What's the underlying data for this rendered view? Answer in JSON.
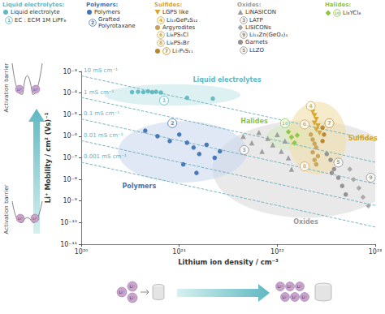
{
  "chart_data": {
    "type": "scatter",
    "xlabel": "Lithium ion density / cm⁻³",
    "ylabel": "Li⁺ Mobility / cm² (Vs)⁻¹",
    "log": true,
    "grid": false,
    "legend": "top",
    "xlim": [
      1e+20,
      1e+23
    ],
    "xticks": [
      {
        "value": 1e+20,
        "label": "10²⁰"
      },
      {
        "value": 1e+21,
        "label": "10²¹"
      },
      {
        "value": 1e+22,
        "label": "10²²"
      },
      {
        "value": 1e+23,
        "label": "10²³"
      }
    ],
    "ylim": [
      1e-11,
      0.001
    ],
    "yticks": [
      {
        "value": 0.001,
        "label": "10⁻³"
      },
      {
        "value": 0.0001,
        "label": "10⁻⁴"
      },
      {
        "value": 1e-05,
        "label": "10⁻⁵"
      },
      {
        "value": 1e-06,
        "label": "10⁻⁶"
      },
      {
        "value": 1e-07,
        "label": "10⁻⁷"
      },
      {
        "value": 1e-08,
        "label": "10⁻⁸"
      },
      {
        "value": 1e-09,
        "label": "10⁻⁹"
      },
      {
        "value": 1e-10,
        "label": "10⁻¹⁰"
      },
      {
        "value": 1e-11,
        "label": "10⁻¹¹"
      }
    ],
    "series": [
      {
        "name": "Liquid electrolyte",
        "color": "#5fb8c2",
        "marker": "circle",
        "values": [
          [
            3.3e+20,
            0.00011
          ],
          [
            3.8e+20,
            0.000115
          ],
          [
            4.3e+20,
            0.00011
          ],
          [
            4.8e+20,
            0.00012
          ],
          [
            5.3e+20,
            0.00011
          ],
          [
            5.8e+20,
            0.000115
          ],
          [
            6.5e+20,
            0.000105
          ],
          [
            1.2e+21,
            6e-05
          ],
          [
            2.2e+21,
            5.5e-05
          ]
        ]
      },
      {
        "name": "Polymers",
        "color": "#3f74b5",
        "marker": "circle",
        "values": [
          [
            4.5e+20,
            1.8e-06
          ],
          [
            6e+20,
            1e-06
          ],
          [
            8e+20,
            6e-07
          ],
          [
            1e+21,
            1.2e-06
          ],
          [
            1.2e+21,
            5e-07
          ],
          [
            1.4e+21,
            3e-07
          ],
          [
            1.6e+21,
            1.5e-07
          ],
          [
            1.9e+21,
            4e-07
          ],
          [
            2.3e+21,
            1e-07
          ],
          [
            1.1e+21,
            5e-08
          ],
          [
            1.5e+21,
            2e-08
          ],
          [
            2.6e+21,
            2e-07
          ]
        ]
      },
      {
        "name": "LGPS like",
        "color": "#d6a52c",
        "marker": "triangle-down",
        "values": [
          [
            2.3e+22,
            1.3e-05
          ],
          [
            2.4e+22,
            9e-06
          ],
          [
            2.5e+22,
            6e-06
          ],
          [
            2.4e+22,
            4e-06
          ],
          [
            2.6e+22,
            3e-06
          ],
          [
            2.5e+22,
            2e-06
          ],
          [
            2.7e+22,
            1.4e-06
          ]
        ]
      },
      {
        "name": "Argyrodites",
        "color": "#c9a25a",
        "marker": "circle",
        "values": [
          [
            2.2e+22,
            1.2e-06
          ],
          [
            2.3e+22,
            7e-07
          ],
          [
            2.4e+22,
            4.5e-07
          ],
          [
            2.5e+22,
            3e-07
          ],
          [
            2.3e+22,
            1.8e-07
          ],
          [
            2.6e+22,
            1.2e-07
          ],
          [
            2.4e+22,
            8e-08
          ],
          [
            2.5e+22,
            5e-08
          ]
        ]
      },
      {
        "name": "Li₇P₃S₁₁",
        "color": "#b8862b",
        "marker": "circle",
        "values": [
          [
            2.9e+22,
            2.5e-06
          ],
          [
            3e+22,
            1.2e-06
          ],
          [
            2.9e+22,
            6e-07
          ]
        ]
      },
      {
        "name": "LiNASICON",
        "color": "#9b9b9b",
        "marker": "triangle",
        "values": [
          [
            4.5e+21,
            1e-06
          ],
          [
            5.5e+21,
            5e-07
          ],
          [
            6.5e+21,
            1.5e-06
          ],
          [
            7e+21,
            2e-07
          ],
          [
            8e+21,
            8e-07
          ],
          [
            9e+21,
            4e-07
          ],
          [
            1e+22,
            1.2e-06
          ],
          [
            1.1e+22,
            2e-07
          ],
          [
            1.2e+22,
            6e-07
          ],
          [
            1.3e+22,
            1e-07
          ],
          [
            1.4e+22,
            3e-08
          ]
        ]
      },
      {
        "name": "LISICONs",
        "color": "#a6a6a6",
        "marker": "diamond",
        "values": [
          [
            5.5e+22,
            3e-08
          ],
          [
            6e+22,
            1e-08
          ],
          [
            6.8e+22,
            4e-09
          ],
          [
            7.5e+22,
            1.5e-09
          ],
          [
            8.5e+22,
            6e-10
          ]
        ]
      },
      {
        "name": "Garnets",
        "color": "#8f8f8f",
        "marker": "circle",
        "values": [
          [
            3.2e+22,
            1.5e-07
          ],
          [
            3.5e+22,
            8e-08
          ],
          [
            3.8e+22,
            3e-08
          ],
          [
            4.2e+22,
            1.2e-08
          ],
          [
            4.6e+22,
            5e-09
          ],
          [
            5e+22,
            2e-09
          ],
          [
            3.6e+22,
            2e-08
          ]
        ]
      },
      {
        "name": "Li₃YCl₆",
        "color": "#8cc63f",
        "marker": "diamond",
        "values": [
          [
            1.3e+22,
            1.6e-06
          ],
          [
            1.4e+22,
            9e-07
          ],
          [
            1.5e+22,
            5e-07
          ],
          [
            1.6e+22,
            1.1e-06
          ]
        ]
      }
    ],
    "numbered": [
      {
        "number": "1",
        "name": "EC : ECM 1M LiPF₆",
        "color": "#5fb8c2",
        "x": 7e+20,
        "y": 4.5e-05
      },
      {
        "number": "2",
        "name": "Grafted Polyrotaxane",
        "color": "#3f74b5",
        "x": 8.5e+20,
        "y": 4e-06
      },
      {
        "number": "3",
        "name": "LATP",
        "color": "#8c8c8c",
        "x": 4.6e+21,
        "y": 2.3e-07
      },
      {
        "number": "4",
        "name": "Li₁₀GeP₂S₁₂",
        "color": "#d6a52c",
        "x": 2.2e+22,
        "y": 2.5e-05
      },
      {
        "number": "5",
        "name": "LLZO",
        "color": "#8c8c8c",
        "x": 4.2e+22,
        "y": 6e-08
      },
      {
        "number": "6",
        "name": "Li₆PS₅Cl",
        "color": "#c9a25a",
        "x": 1.9e+22,
        "y": 3.5e-06
      },
      {
        "number": "7",
        "name": "Li₇P₃S₁₁",
        "color": "#b8862b",
        "x": 3.4e+22,
        "y": 4e-06
      },
      {
        "number": "8",
        "name": "Li₆PS₅Br",
        "color": "#c9a25a",
        "x": 1.9e+22,
        "y": 4e-08
      },
      {
        "number": "9",
        "name": "Li₁₄Zn(GeO₄)₄",
        "color": "#8c8c8c",
        "x": 9e+22,
        "y": 1.2e-08
      },
      {
        "number": "10",
        "name": "Li₃YCl₆",
        "color": "#8cc63f",
        "x": 1.2e+22,
        "y": 4e-06
      }
    ],
    "legend_groups": [
      {
        "title": "Liquid electrolytes:",
        "items": [
          {
            "series": "Liquid electrolyte"
          },
          {
            "number": "1"
          }
        ]
      },
      {
        "title": "Polymers:",
        "items": [
          {
            "series": "Polymers"
          },
          {
            "number": "2"
          }
        ]
      },
      {
        "title": "Sulfides:",
        "items": [
          {
            "series": "LGPS like"
          },
          {
            "number": "4"
          },
          {
            "series": "Argyrodites"
          },
          {
            "number": "6"
          },
          {
            "number": "8"
          },
          {
            "series": "Li₇P₃S₁₁",
            "number": "7"
          }
        ]
      },
      {
        "title": "Oxides:",
        "items": [
          {
            "series": "LiNASICON"
          },
          {
            "number": "3"
          },
          {
            "series": "LISICONs"
          },
          {
            "number": "9"
          },
          {
            "series": "Garnets"
          },
          {
            "number": "5"
          }
        ]
      },
      {
        "title": "Halides:",
        "items": [
          {
            "series": "Li₃YCl₆",
            "number": "10"
          }
        ]
      }
    ],
    "regions": [
      {
        "label": "Oxides",
        "color": "#dadada",
        "series": [
          "LiNASICON",
          "LISICONs",
          "Garnets"
        ]
      },
      {
        "label": "Halides",
        "color": "#d5eabf",
        "series": [
          "Li₃YCl₆"
        ]
      },
      {
        "label": "Sulfides",
        "color": "#f0dfa8",
        "series": [
          "LGPS like",
          "Argyrodites",
          "Li₇P₃S₁₁"
        ]
      },
      {
        "label": "Polymers",
        "color": "#c9d8ec",
        "series": [
          "Polymers"
        ]
      },
      {
        "label": "Liquid electrolytes",
        "color": "#c6e6e9",
        "series": [
          "Liquid electrolyte"
        ]
      }
    ],
    "conductivity_lines": [
      {
        "label": "10 mS cm⁻¹",
        "color": "#6aaec0",
        "line_style": "dashed",
        "x": [
          1e+20,
          1e+23
        ],
        "y": [
          0.000624,
          6.24e-07
        ]
      },
      {
        "label": "1 mS cm⁻¹",
        "color": "#6aaec0",
        "line_style": "dashed",
        "x": [
          1e+20,
          1e+23
        ],
        "y": [
          6.24e-05,
          6.24e-08
        ]
      },
      {
        "label": "0.1 mS cm⁻¹",
        "color": "#6aaec0",
        "line_style": "dashed",
        "x": [
          1e+20,
          1e+23
        ],
        "y": [
          6.24e-06,
          6.24e-09
        ]
      },
      {
        "label": "0.01 mS cm⁻¹",
        "color": "#6aaec0",
        "line_style": "dashed",
        "x": [
          1e+20,
          1e+23
        ],
        "y": [
          6.24e-07,
          6.24e-10
        ]
      },
      {
        "label": "0.001 mS cm⁻¹",
        "color": "#6aaec0",
        "line_style": "dashed",
        "x": [
          1e+20,
          1e+23
        ],
        "y": [
          6.24e-08,
          6.24e-11
        ]
      }
    ],
    "annotations": {
      "activation_barrier": "Activation barrier",
      "ion": "Li⁺"
    }
  }
}
